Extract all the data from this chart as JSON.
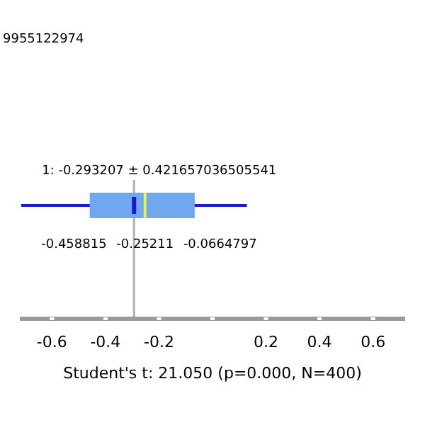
{
  "chart_data": {
    "type": "box",
    "orientation": "horizontal",
    "categories": [
      null
    ],
    "series": [
      {
        "color": "#6fa8f0",
        "boxes": [
          {
            "low": -0.714864,
            "q1": -0.458815,
            "median": -0.25211,
            "q3": -0.0664797,
            "high": 0.12845,
            "mean": -0.293207
          }
        ]
      }
    ],
    "xlim": [
      -0.72,
      0.72
    ],
    "xticks": [
      -0.6,
      -0.4,
      -0.2,
      {
        "value": 0,
        "label": null
      },
      0.2,
      0.4,
      0.6
    ],
    "xlabel": "Student's t: 21.050 (p=0.000, N=400)",
    "ref_lines": [
      {
        "axis": "x",
        "value": -0.293207,
        "color": "#b0b0b0"
      }
    ],
    "annotations": [
      "9955122974",
      "1: -0.293207 ± 0.421657036505541",
      "-0.458815",
      "-0.25211",
      "-0.0664797"
    ]
  }
}
